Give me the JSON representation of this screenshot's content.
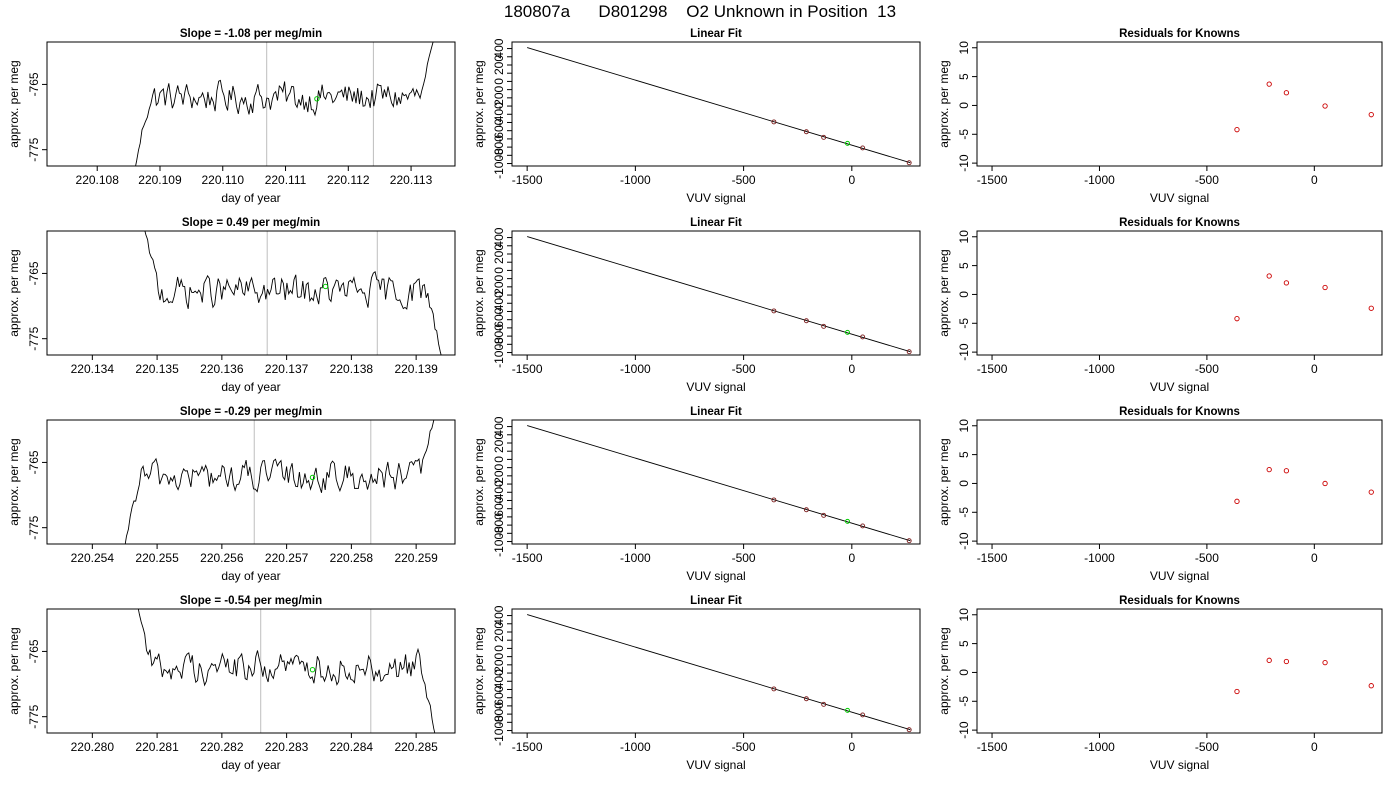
{
  "page_title": "180807a      D801298    O2 Unknown in Position  13",
  "chart_data": [
    {
      "type": "line",
      "row": 0,
      "panel": "timeseries",
      "title": "Slope =  -1.08  per meg/min",
      "xlabel": "day of year",
      "ylabel": "approx. per meg",
      "xlim": [
        220.1072,
        220.1137
      ],
      "ylim": [
        -777.5,
        -758.5
      ],
      "xticks": [
        "220.108",
        "220.109",
        "220.110",
        "220.111",
        "220.112",
        "220.113"
      ],
      "yticks": [
        "-775",
        "-765"
      ],
      "vlines": [
        220.1107,
        220.1124
      ],
      "unknown_point": {
        "x": 220.1115,
        "y": -767.2
      },
      "series": [
        {
          "x_start": 220.1086,
          "x_end": 220.1134,
          "mean": -767.0,
          "start": -778.0,
          "end": -757.0,
          "values": []
        }
      ]
    },
    {
      "type": "scatter",
      "row": 0,
      "panel": "fit",
      "title": "Linear Fit",
      "xlabel": "VUV signal",
      "ylabel": "approx. per meg",
      "xlim": [
        -1570,
        315
      ],
      "ylim": [
        -1030,
        480
      ],
      "xticks": [
        "-1500",
        "-1000",
        "-500",
        "0"
      ],
      "yticks": [
        "-1000",
        "-800",
        "-600",
        "-400",
        "-200",
        "0",
        "200",
        "400"
      ],
      "fit_line": {
        "x": [
          -1500,
          270
        ],
        "y": [
          412,
          -990
        ]
      },
      "knowns": {
        "x": [
          -360,
          -210,
          -130,
          50,
          265
        ],
        "y": [
          -493,
          -613,
          -681,
          -810,
          -990
        ]
      },
      "unknown": {
        "x": -20,
        "y": -755
      }
    },
    {
      "type": "scatter",
      "row": 0,
      "panel": "residuals",
      "title": "Residuals for Knowns",
      "xlabel": "VUV signal",
      "ylabel": "approx. per meg",
      "xlim": [
        -1570,
        315
      ],
      "ylim": [
        -10.5,
        11
      ],
      "xticks": [
        "-1500",
        "-1000",
        "-500",
        "0"
      ],
      "yticks": [
        "-10",
        "-5",
        "0",
        "5",
        "10"
      ],
      "knowns": {
        "x": [
          -360,
          -210,
          -130,
          50,
          265
        ],
        "y": [
          -4.2,
          3.7,
          2.2,
          -0.1,
          -1.6
        ]
      }
    },
    {
      "type": "line",
      "row": 1,
      "panel": "timeseries",
      "title": "Slope =  0.49  per meg/min",
      "xlabel": "day of year",
      "ylabel": "approx. per meg",
      "xlim": [
        220.1333,
        220.1396
      ],
      "ylim": [
        -777.5,
        -758.5
      ],
      "xticks": [
        "220.134",
        "220.135",
        "220.136",
        "220.137",
        "220.138",
        "220.139"
      ],
      "yticks": [
        "-775",
        "-765"
      ],
      "vlines": [
        220.1367,
        220.1384
      ],
      "unknown_point": {
        "x": 220.1376,
        "y": -767.0
      },
      "series": [
        {
          "x_start": 220.1348,
          "x_end": 220.1394,
          "mean": -767.8,
          "start": -758.0,
          "end": -778.0,
          "values": []
        }
      ]
    },
    {
      "type": "scatter",
      "row": 1,
      "panel": "fit",
      "title": "Linear Fit",
      "xlabel": "VUV signal",
      "ylabel": "approx. per meg",
      "xlim": [
        -1570,
        315
      ],
      "ylim": [
        -1030,
        480
      ],
      "xticks": [
        "-1500",
        "-1000",
        "-500",
        "0"
      ],
      "yticks": [
        "-1000",
        "-800",
        "-600",
        "-400",
        "-200",
        "0",
        "200",
        "400"
      ],
      "fit_line": {
        "x": [
          -1500,
          270
        ],
        "y": [
          412,
          -990
        ]
      },
      "knowns": {
        "x": [
          -360,
          -210,
          -130,
          50,
          265
        ],
        "y": [
          -493,
          -613,
          -681,
          -810,
          -990
        ]
      },
      "unknown": {
        "x": -20,
        "y": -755
      }
    },
    {
      "type": "scatter",
      "row": 1,
      "panel": "residuals",
      "title": "Residuals for Knowns",
      "xlabel": "VUV signal",
      "ylabel": "approx. per meg",
      "xlim": [
        -1570,
        315
      ],
      "ylim": [
        -10.5,
        11
      ],
      "xticks": [
        "-1500",
        "-1000",
        "-500",
        "0"
      ],
      "yticks": [
        "-10",
        "-5",
        "0",
        "5",
        "10"
      ],
      "knowns": {
        "x": [
          -360,
          -210,
          -130,
          50,
          265
        ],
        "y": [
          -4.2,
          3.2,
          2.0,
          1.2,
          -2.4
        ]
      }
    },
    {
      "type": "line",
      "row": 2,
      "panel": "timeseries",
      "title": "Slope =  -0.29  per meg/min",
      "xlabel": "day of year",
      "ylabel": "approx. per meg",
      "xlim": [
        220.2533,
        220.2596
      ],
      "ylim": [
        -777.5,
        -758.5
      ],
      "xticks": [
        "220.254",
        "220.255",
        "220.256",
        "220.257",
        "220.258",
        "220.259"
      ],
      "yticks": [
        "-775",
        "-765"
      ],
      "vlines": [
        220.2565,
        220.2583
      ],
      "unknown_point": {
        "x": 220.2574,
        "y": -767.3
      },
      "series": [
        {
          "x_start": 220.2545,
          "x_end": 220.2593,
          "mean": -767.2,
          "start": -778.0,
          "end": -757.0,
          "values": []
        }
      ]
    },
    {
      "type": "scatter",
      "row": 2,
      "panel": "fit",
      "title": "Linear Fit",
      "xlabel": "VUV signal",
      "ylabel": "approx. per meg",
      "xlim": [
        -1570,
        315
      ],
      "ylim": [
        -1030,
        480
      ],
      "xticks": [
        "-1500",
        "-1000",
        "-500",
        "0"
      ],
      "yticks": [
        "-1000",
        "-800",
        "-600",
        "-400",
        "-200",
        "0",
        "200",
        "400"
      ],
      "fit_line": {
        "x": [
          -1500,
          270
        ],
        "y": [
          412,
          -990
        ]
      },
      "knowns": {
        "x": [
          -360,
          -210,
          -130,
          50,
          265
        ],
        "y": [
          -493,
          -613,
          -681,
          -810,
          -990
        ]
      },
      "unknown": {
        "x": -20,
        "y": -755
      }
    },
    {
      "type": "scatter",
      "row": 2,
      "panel": "residuals",
      "title": "Residuals for Knowns",
      "xlabel": "VUV signal",
      "ylabel": "approx. per meg",
      "xlim": [
        -1570,
        315
      ],
      "ylim": [
        -10.5,
        11
      ],
      "xticks": [
        "-1500",
        "-1000",
        "-500",
        "0"
      ],
      "yticks": [
        "-10",
        "-5",
        "0",
        "5",
        "10"
      ],
      "knowns": {
        "x": [
          -360,
          -210,
          -130,
          50,
          265
        ],
        "y": [
          -3.1,
          2.4,
          2.2,
          0.0,
          -1.5
        ]
      }
    },
    {
      "type": "line",
      "row": 3,
      "panel": "timeseries",
      "title": "Slope =  -0.54  per meg/min",
      "xlabel": "day of year",
      "ylabel": "approx. per meg",
      "xlim": [
        220.2793,
        220.2856
      ],
      "ylim": [
        -777.5,
        -758.5
      ],
      "xticks": [
        "220.280",
        "220.281",
        "220.282",
        "220.283",
        "220.284",
        "220.285"
      ],
      "yticks": [
        "-775",
        "-765"
      ],
      "vlines": [
        220.2826,
        220.2843
      ],
      "unknown_point": {
        "x": 220.2834,
        "y": -767.8
      },
      "series": [
        {
          "x_start": 220.2807,
          "x_end": 220.2853,
          "mean": -767.4,
          "start": -758.0,
          "end": -778.0,
          "values": []
        }
      ]
    },
    {
      "type": "scatter",
      "row": 3,
      "panel": "fit",
      "title": "Linear Fit",
      "xlabel": "VUV signal",
      "ylabel": "approx. per meg",
      "xlim": [
        -1570,
        315
      ],
      "ylim": [
        -1030,
        480
      ],
      "xticks": [
        "-1500",
        "-1000",
        "-500",
        "0"
      ],
      "yticks": [
        "-1000",
        "-800",
        "-600",
        "-400",
        "-200",
        "0",
        "200",
        "400"
      ],
      "fit_line": {
        "x": [
          -1500,
          270
        ],
        "y": [
          412,
          -990
        ]
      },
      "knowns": {
        "x": [
          -360,
          -210,
          -130,
          50,
          265
        ],
        "y": [
          -493,
          -613,
          -681,
          -810,
          -990
        ]
      },
      "unknown": {
        "x": -20,
        "y": -755
      }
    },
    {
      "type": "scatter",
      "row": 3,
      "panel": "residuals",
      "title": "Residuals for Knowns",
      "xlabel": "VUV signal",
      "ylabel": "approx. per meg",
      "xlim": [
        -1570,
        315
      ],
      "ylim": [
        -10.5,
        11
      ],
      "xticks": [
        "-1500",
        "-1000",
        "-500",
        "0"
      ],
      "yticks": [
        "-10",
        "-5",
        "0",
        "5",
        "10"
      ],
      "knowns": {
        "x": [
          -360,
          -210,
          -130,
          50,
          265
        ],
        "y": [
          -3.3,
          2.1,
          1.9,
          1.7,
          -2.3
        ]
      }
    }
  ],
  "colors": {
    "series": "#000000",
    "vline": "#bebebe",
    "unknown": "#00cc00",
    "known": "#cc0000"
  }
}
